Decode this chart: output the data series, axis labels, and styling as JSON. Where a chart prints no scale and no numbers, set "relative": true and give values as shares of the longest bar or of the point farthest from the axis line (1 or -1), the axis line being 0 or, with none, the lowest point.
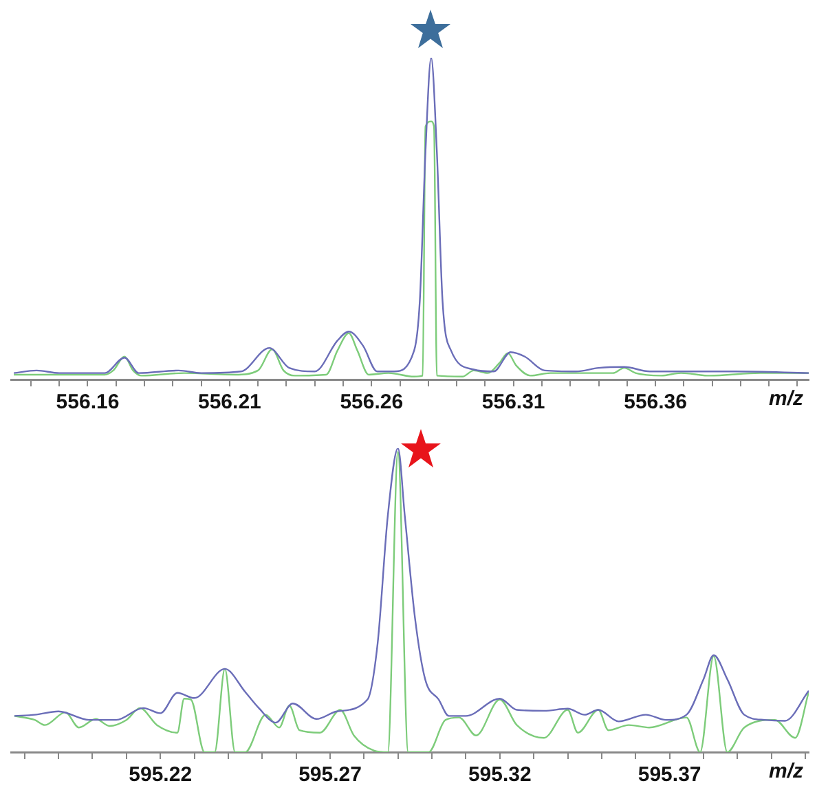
{
  "chart_data": [
    {
      "type": "line",
      "relative": true,
      "xlabel": "m/z",
      "xlim": [
        556.133,
        556.414
      ],
      "xticks": [
        {
          "value": 556.14,
          "label": null
        },
        {
          "value": 556.15,
          "label": null
        },
        556.16,
        {
          "value": 556.17,
          "label": null
        },
        {
          "value": 556.18,
          "label": null
        },
        {
          "value": 556.19,
          "label": null
        },
        {
          "value": 556.2,
          "label": null
        },
        556.21,
        {
          "value": 556.22,
          "label": null
        },
        {
          "value": 556.23,
          "label": null
        },
        {
          "value": 556.24,
          "label": null
        },
        {
          "value": 556.25,
          "label": null
        },
        556.26,
        {
          "value": 556.27,
          "label": null
        },
        {
          "value": 556.28,
          "label": null
        },
        {
          "value": 556.29,
          "label": null
        },
        {
          "value": 556.3,
          "label": null
        },
        556.31,
        {
          "value": 556.32,
          "label": null
        },
        {
          "value": 556.33,
          "label": null
        },
        {
          "value": 556.34,
          "label": null
        },
        {
          "value": 556.35,
          "label": null
        },
        556.36,
        {
          "value": 556.37,
          "label": null
        },
        {
          "value": 556.38,
          "label": null
        },
        {
          "value": 556.39,
          "label": null
        },
        {
          "value": 556.4,
          "label": null
        },
        {
          "value": 556.41,
          "label": null
        }
      ],
      "series": [
        {
          "color": "#6a6db8",
          "x": [
            556.134,
            556.142,
            556.15,
            556.166,
            556.173,
            556.178,
            556.192,
            556.2,
            556.214,
            556.224,
            556.231,
            556.24,
            556.248,
            556.252,
            556.257,
            556.262,
            556.268,
            556.275,
            556.277,
            556.279,
            556.281,
            556.283,
            556.285,
            556.288,
            556.296,
            556.303,
            556.309,
            556.314,
            556.321,
            556.332,
            556.34,
            556.349,
            556.358,
            556.369,
            556.388,
            556.414
          ],
          "values": [
            0.02,
            0.028,
            0.02,
            0.02,
            0.068,
            0.02,
            0.028,
            0.02,
            0.025,
            0.098,
            0.036,
            0.025,
            0.121,
            0.149,
            0.105,
            0.025,
            0.025,
            0.09,
            0.245,
            0.709,
            1,
            0.709,
            0.245,
            0.09,
            0.031,
            0.025,
            0.085,
            0.071,
            0.028,
            0.025,
            0.036,
            0.039,
            0.025,
            0.025,
            0.025,
            0.02
          ]
        },
        {
          "color": "#7dcc7a",
          "x": [
            556.134,
            556.148,
            556.166,
            556.169,
            556.173,
            556.176,
            556.179,
            556.194,
            556.212,
            556.22,
            556.225,
            556.229,
            556.233,
            556.244,
            556.248,
            556.252,
            556.255,
            556.259,
            556.266,
            556.275,
            556.278,
            556.279,
            556.281,
            556.282,
            556.283,
            556.292,
            556.296,
            556.301,
            556.305,
            556.308,
            556.311,
            556.316,
            556.323,
            556.332,
            556.345,
            556.349,
            556.353,
            556.362,
            556.369,
            556.379,
            556.397,
            556.414
          ],
          "values": [
            0.015,
            0.015,
            0.015,
            0.028,
            0.071,
            0.028,
            0.012,
            0.02,
            0.015,
            0.028,
            0.094,
            0.028,
            0.012,
            0.015,
            0.09,
            0.144,
            0.09,
            0.015,
            0.02,
            0.009,
            0.012,
            0.786,
            0.802,
            0.786,
            0.012,
            0.009,
            0.028,
            0.02,
            0.051,
            0.082,
            0.043,
            0.012,
            0.02,
            0.02,
            0.02,
            0.036,
            0.02,
            0.012,
            0.02,
            0.012,
            0.02,
            0.02
          ]
        }
      ]
    },
    {
      "type": "line",
      "relative": true,
      "xlabel": "m/z",
      "xlim": [
        595.176,
        595.411
      ],
      "xticks": [
        {
          "value": 595.18,
          "label": null
        },
        {
          "value": 595.19,
          "label": null
        },
        {
          "value": 595.2,
          "label": null
        },
        {
          "value": 595.21,
          "label": null
        },
        595.22,
        {
          "value": 595.23,
          "label": null
        },
        {
          "value": 595.24,
          "label": null
        },
        {
          "value": 595.25,
          "label": null
        },
        {
          "value": 595.26,
          "label": null
        },
        595.27,
        {
          "value": 595.28,
          "label": null
        },
        {
          "value": 595.29,
          "label": null
        },
        {
          "value": 595.3,
          "label": null
        },
        {
          "value": 595.31,
          "label": null
        },
        595.32,
        {
          "value": 595.33,
          "label": null
        },
        {
          "value": 595.34,
          "label": null
        },
        {
          "value": 595.35,
          "label": null
        },
        {
          "value": 595.36,
          "label": null
        },
        595.37,
        {
          "value": 595.38,
          "label": null
        },
        {
          "value": 595.39,
          "label": null
        },
        {
          "value": 595.4,
          "label": null
        },
        {
          "value": 595.41,
          "label": null
        }
      ],
      "series": [
        {
          "color": "#6a6db8",
          "x": [
            595.177,
            595.183,
            595.19,
            595.199,
            595.207,
            595.215,
            595.22,
            595.225,
            595.23,
            595.239,
            595.245,
            595.249,
            595.254,
            595.259,
            595.266,
            595.272,
            595.281,
            595.284,
            595.287,
            595.29,
            595.292,
            595.295,
            595.298,
            595.302,
            595.305,
            595.31,
            595.32,
            595.325,
            595.333,
            595.34,
            595.345,
            595.349,
            595.355,
            595.363,
            595.369,
            595.375,
            595.38,
            595.383,
            595.387,
            595.392,
            595.398,
            595.404,
            595.411
          ],
          "values": [
            0.119,
            0.123,
            0.134,
            0.106,
            0.106,
            0.145,
            0.128,
            0.195,
            0.178,
            0.274,
            0.198,
            0.145,
            0.097,
            0.16,
            0.109,
            0.134,
            0.173,
            0.358,
            0.778,
            1,
            0.778,
            0.442,
            0.24,
            0.173,
            0.119,
            0.119,
            0.176,
            0.139,
            0.136,
            0.143,
            0.123,
            0.139,
            0.101,
            0.123,
            0.106,
            0.123,
            0.24,
            0.319,
            0.24,
            0.123,
            0.106,
            0.103,
            0.202
          ]
        },
        {
          "color": "#7dcc7a",
          "x": [
            595.177,
            595.183,
            595.186,
            595.192,
            595.196,
            595.201,
            595.205,
            595.21,
            595.214,
            595.219,
            595.225,
            595.227,
            595.229,
            595.233,
            595.236,
            595.239,
            595.242,
            595.245,
            595.251,
            595.255,
            595.258,
            595.261,
            595.267,
            595.273,
            595.277,
            595.283,
            595.287,
            595.29,
            595.293,
            595.299,
            595.304,
            595.308,
            595.313,
            595.32,
            595.325,
            595.333,
            595.34,
            595.343,
            595.349,
            595.352,
            595.358,
            595.364,
            595.375,
            595.379,
            595.383,
            595.387,
            595.392,
            595.401,
            595.407,
            595.411
          ],
          "values": [
            0.119,
            0.106,
            0.089,
            0.131,
            0.081,
            0.109,
            0.086,
            0.106,
            0.145,
            0.089,
            0.064,
            0.176,
            0.173,
            0,
            0,
            0.274,
            0,
            0,
            0.123,
            0.081,
            0.153,
            0.072,
            0.064,
            0.139,
            0.055,
            0.005,
            0,
            0.988,
            0,
            0,
            0.106,
            0.114,
            0.055,
            0.173,
            0.089,
            0.047,
            0.139,
            0.064,
            0.139,
            0.072,
            0.089,
            0.081,
            0.114,
            0,
            0.316,
            0,
            0.081,
            0.106,
            0.047,
            0.198
          ]
        }
      ]
    }
  ]
}
